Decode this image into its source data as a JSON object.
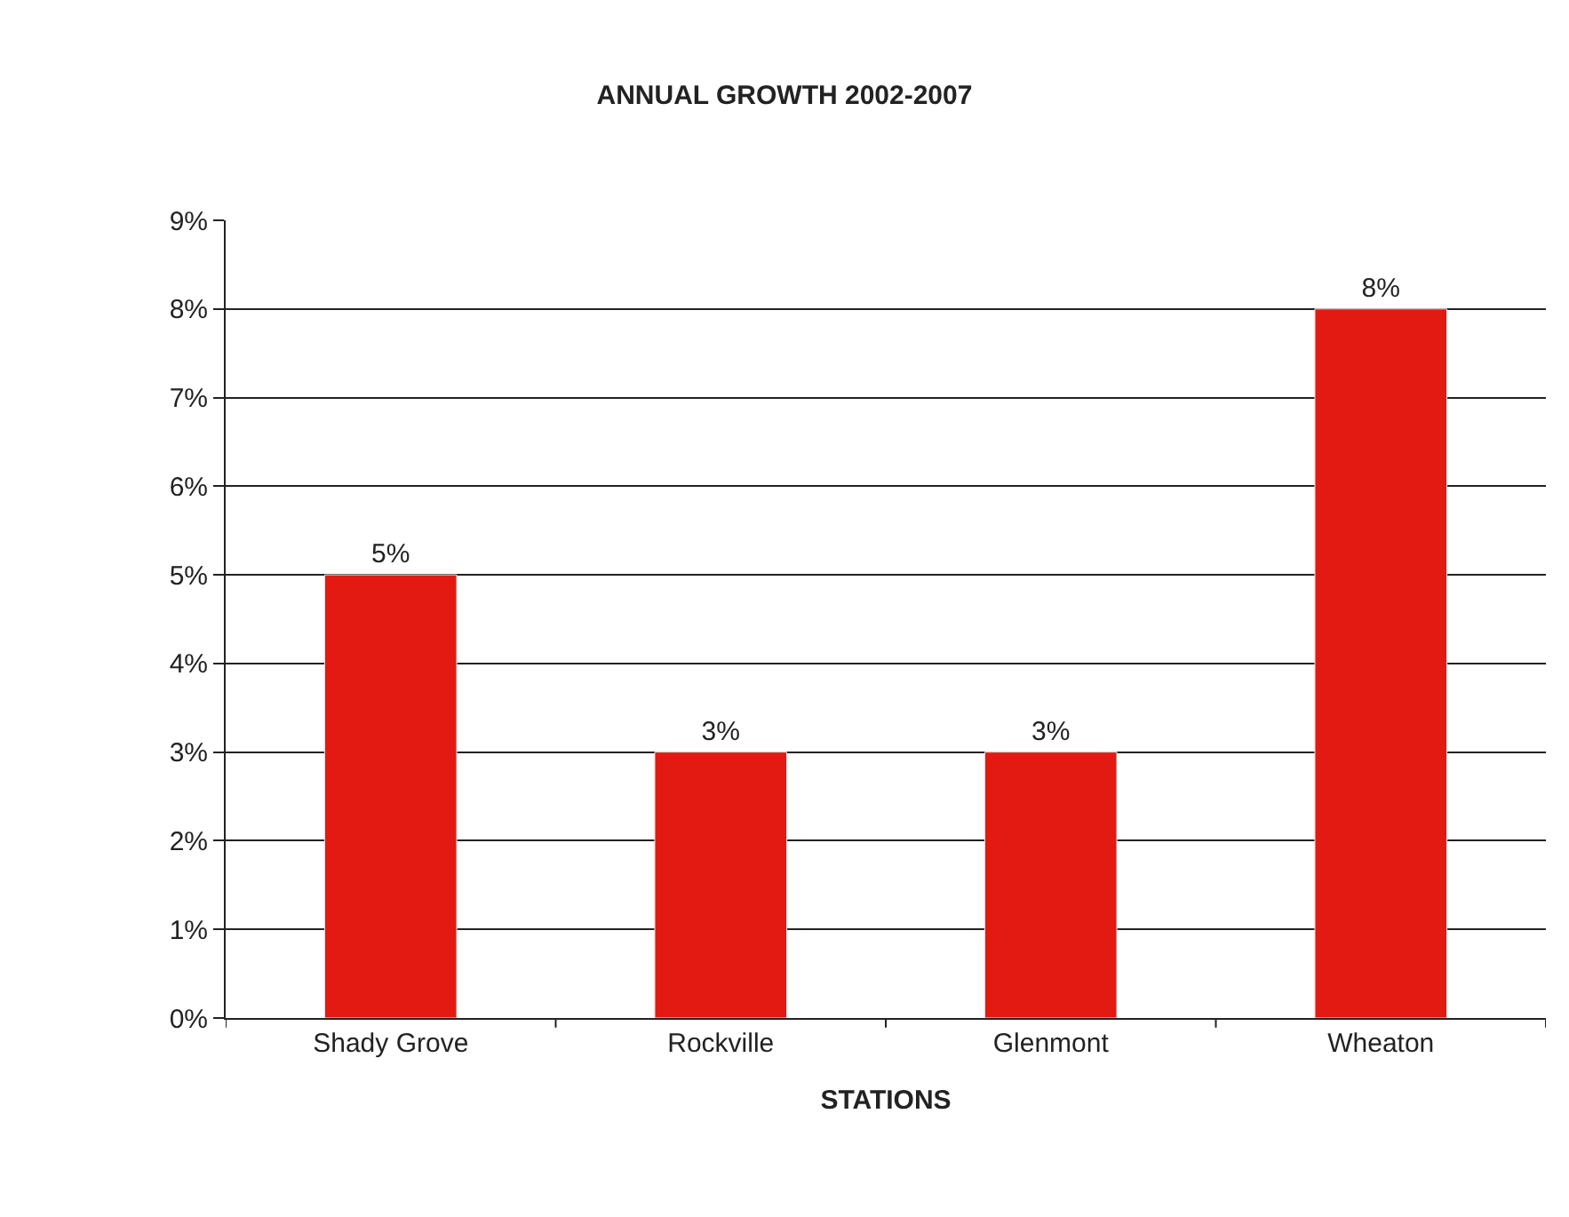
{
  "chart_data": {
    "type": "bar",
    "title": "ANNUAL GROWTH 2002-2007",
    "xlabel": "STATIONS",
    "categories": [
      "Shady Grove",
      "Rockville",
      "Glenmont",
      "Wheaton"
    ],
    "values": [
      5,
      3,
      3,
      8
    ],
    "value_labels": [
      "5%",
      "3%",
      "3%",
      "8%"
    ],
    "color": "#e31a12",
    "ylim": [
      0,
      9
    ],
    "yticks": [
      {
        "value": 0,
        "label": "0%"
      },
      {
        "value": 1,
        "label": "1%"
      },
      {
        "value": 2,
        "label": "2%"
      },
      {
        "value": 3,
        "label": "3%"
      },
      {
        "value": 4,
        "label": "4%"
      },
      {
        "value": 5,
        "label": "5%"
      },
      {
        "value": 6,
        "label": "6%"
      },
      {
        "value": 7,
        "label": "7%"
      },
      {
        "value": 8,
        "label": "8%"
      },
      {
        "value": 9,
        "label": "9%"
      }
    ],
    "grid": "y",
    "legend": false
  }
}
